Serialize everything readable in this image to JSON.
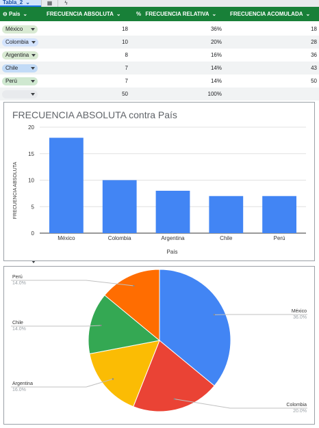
{
  "tab": {
    "name": "Tabla_2"
  },
  "toolbar": {
    "icons": [
      "table-grid-icon",
      "bolt-icon"
    ]
  },
  "table": {
    "columns": [
      {
        "icon": "column-icon",
        "label": "País"
      },
      {
        "label": "FRECUENCIA ABSOLUTA"
      },
      {
        "icon": "%",
        "label": "FRECUENCIA RELATIVA"
      },
      {
        "label": "FRECUENCIA ACOMULADA"
      }
    ],
    "rows": [
      {
        "pais": "México",
        "absoluta": "18",
        "relativa": "36%",
        "acumulada": "18",
        "chip_color": "#d9ead3"
      },
      {
        "pais": "Colombia",
        "absoluta": "10",
        "relativa": "20%",
        "acumulada": "28",
        "chip_color": "#d3e3fd"
      },
      {
        "pais": "Argentina",
        "absoluta": "8",
        "relativa": "16%",
        "acumulada": "36",
        "chip_color": "#d9ead3"
      },
      {
        "pais": "Chile",
        "absoluta": "7",
        "relativa": "14%",
        "acumulada": "43",
        "chip_color": "#c2dbf7"
      },
      {
        "pais": "Perú",
        "absoluta": "7",
        "relativa": "14%",
        "acumulada": "50",
        "chip_color": "#cfe8d0"
      },
      {
        "pais": "",
        "absoluta": "50",
        "relativa": "100%",
        "acumulada": "",
        "chip_color": "#e8eaed"
      }
    ]
  },
  "chart_data": [
    {
      "type": "bar",
      "title": "FRECUENCIA ABSOLUTA contra País",
      "xlabel": "País",
      "ylabel": "FRECUENCIA ABSOLUTA",
      "categories": [
        "México",
        "Colombia",
        "Argentina",
        "Chile",
        "Perú"
      ],
      "values": [
        18,
        10,
        8,
        7,
        7
      ],
      "yticks": [
        "0",
        "5",
        "10",
        "15",
        "20"
      ],
      "ylim": [
        0,
        20
      ],
      "color": "#4285f4",
      "grid": true
    },
    {
      "type": "pie",
      "slices": [
        {
          "label": "México",
          "value": 36.0,
          "pct": "36.0%",
          "color": "#4285f4"
        },
        {
          "label": "Colombia",
          "value": 20.0,
          "pct": "20.0%",
          "color": "#ea4335"
        },
        {
          "label": "Argentina",
          "value": 16.0,
          "pct": "16.0%",
          "color": "#fbbc04"
        },
        {
          "label": "Chile",
          "value": 14.0,
          "pct": "14.0%",
          "color": "#34a853"
        },
        {
          "label": "Perú",
          "value": 14.0,
          "pct": "14.0%",
          "color": "#ff6d01"
        }
      ]
    }
  ]
}
